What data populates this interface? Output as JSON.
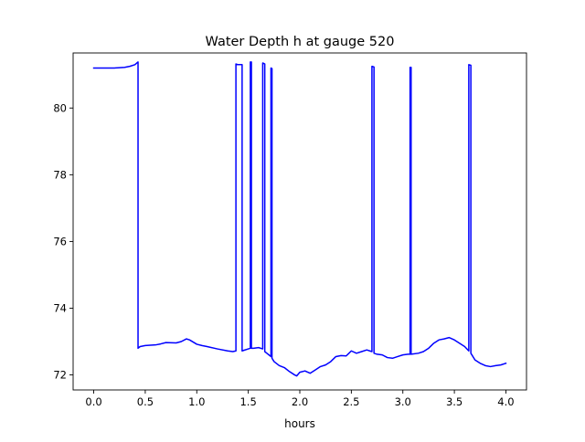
{
  "chart_data": {
    "type": "line",
    "title": "Water Depth h at gauge 520",
    "xlabel": "hours",
    "ylabel": "",
    "xlim": [
      -0.2,
      4.2
    ],
    "ylim": [
      71.55,
      81.65
    ],
    "xticks": [
      0.0,
      0.5,
      1.0,
      1.5,
      2.0,
      2.5,
      3.0,
      3.5,
      4.0
    ],
    "xtick_labels": [
      "0.0",
      "0.5",
      "1.0",
      "1.5",
      "2.0",
      "2.5",
      "3.0",
      "3.5",
      "4.0"
    ],
    "yticks": [
      72,
      74,
      76,
      78,
      80
    ],
    "ytick_labels": [
      "72",
      "74",
      "76",
      "78",
      "80"
    ],
    "grid": false,
    "series": [
      {
        "color": "#0000ff",
        "x": [
          0.0,
          0.1,
          0.2,
          0.3,
          0.35,
          0.4,
          0.43,
          0.43,
          0.45,
          0.5,
          0.6,
          0.65,
          0.7,
          0.8,
          0.85,
          0.9,
          0.93,
          1.0,
          1.05,
          1.1,
          1.2,
          1.3,
          1.35,
          1.38,
          1.38,
          1.4,
          1.44,
          1.44,
          1.46,
          1.5,
          1.52,
          1.52,
          1.53,
          1.53,
          1.55,
          1.6,
          1.64,
          1.64,
          1.66,
          1.66,
          1.68,
          1.7,
          1.72,
          1.72,
          1.73,
          1.73,
          1.75,
          1.8,
          1.85,
          1.9,
          1.95,
          1.97,
          2.0,
          2.05,
          2.1,
          2.15,
          2.2,
          2.25,
          2.3,
          2.35,
          2.4,
          2.45,
          2.5,
          2.55,
          2.6,
          2.65,
          2.7,
          2.7,
          2.72,
          2.72,
          2.75,
          2.8,
          2.85,
          2.9,
          2.95,
          3.0,
          3.05,
          3.07,
          3.07,
          3.08,
          3.08,
          3.15,
          3.2,
          3.25,
          3.3,
          3.35,
          3.4,
          3.45,
          3.5,
          3.55,
          3.6,
          3.64,
          3.64,
          3.66,
          3.66,
          3.7,
          3.75,
          3.8,
          3.85,
          3.9,
          3.95,
          4.0
        ],
        "y": [
          81.2,
          81.2,
          81.2,
          81.22,
          81.25,
          81.3,
          81.38,
          72.8,
          72.85,
          72.88,
          72.9,
          72.93,
          72.97,
          72.96,
          73.0,
          73.08,
          73.05,
          72.92,
          72.88,
          72.85,
          72.78,
          72.72,
          72.7,
          72.72,
          81.32,
          81.3,
          81.3,
          72.72,
          72.74,
          72.78,
          72.8,
          81.38,
          81.38,
          72.8,
          72.8,
          72.82,
          72.78,
          81.35,
          81.32,
          72.7,
          72.65,
          72.6,
          72.55,
          81.2,
          81.18,
          72.5,
          72.4,
          72.28,
          72.22,
          72.1,
          72.0,
          71.97,
          72.08,
          72.12,
          72.05,
          72.15,
          72.25,
          72.3,
          72.4,
          72.55,
          72.58,
          72.57,
          72.72,
          72.65,
          72.7,
          72.75,
          72.7,
          81.25,
          81.23,
          72.65,
          72.62,
          72.6,
          72.52,
          72.5,
          72.55,
          72.6,
          72.62,
          72.62,
          81.22,
          81.22,
          72.62,
          72.65,
          72.7,
          72.8,
          72.95,
          73.05,
          73.08,
          73.12,
          73.05,
          72.95,
          72.85,
          72.72,
          81.3,
          81.28,
          72.65,
          72.45,
          72.35,
          72.28,
          72.25,
          72.28,
          72.3,
          72.35
        ]
      }
    ]
  }
}
